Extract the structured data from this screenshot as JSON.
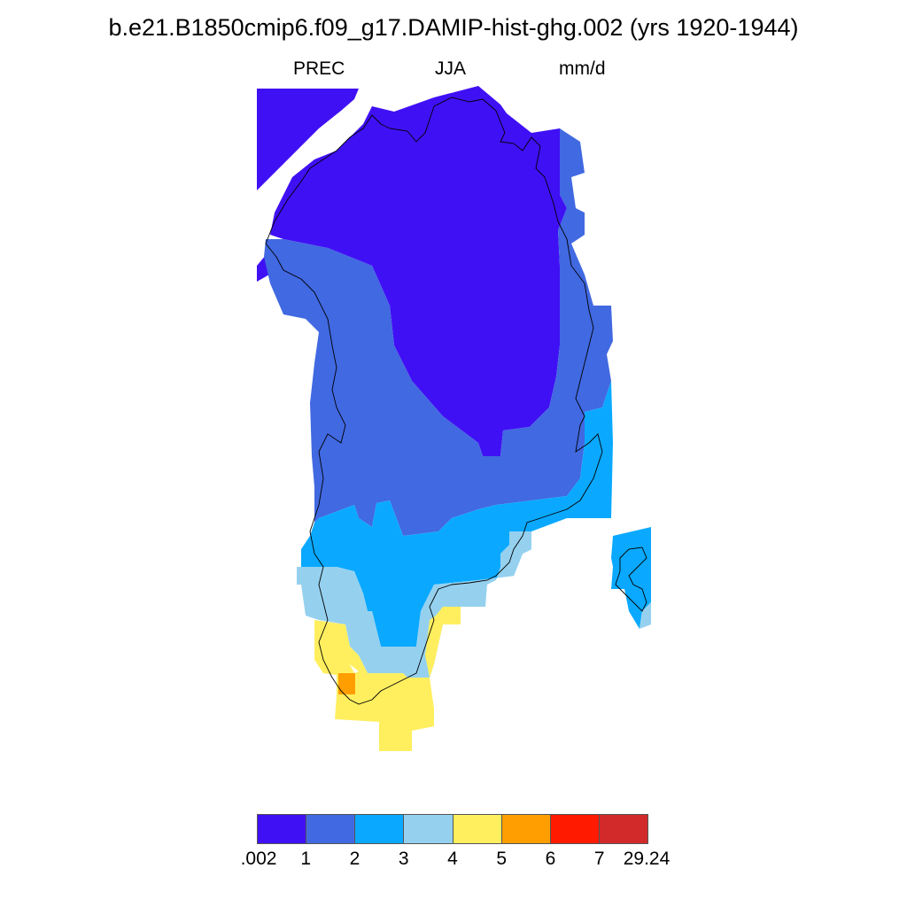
{
  "title": "b.e21.B1850cmip6.f09_g17.DAMIP-hist-ghg.002 (yrs 1920-1944)",
  "subtitle": {
    "left": "PREC",
    "center": "JJA",
    "right": "mm/d"
  },
  "legend": {
    "colors": [
      "#4010f5",
      "#4169e1",
      "#0aa9ff",
      "#95d1ef",
      "#ffef5f",
      "#ff9e00",
      "#ff1a00",
      "#d22a2a"
    ],
    "ticks": [
      ".002",
      "1",
      "2",
      "3",
      "4",
      "5",
      "6",
      "7",
      "29.24"
    ]
  }
}
